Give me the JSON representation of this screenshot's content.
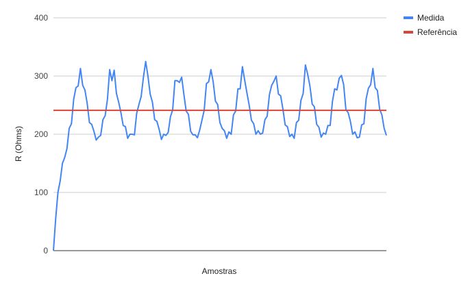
{
  "chart_data": {
    "type": "line",
    "xlabel": "Amostras",
    "ylabel": "R (Ohms)",
    "ylim": [
      0,
      400
    ],
    "yticks": [
      0,
      100,
      200,
      300,
      400
    ],
    "grid": true,
    "legend_position": "top-right",
    "series": [
      {
        "name": "Medida",
        "color": "#4285f4",
        "values": [
          0,
          55,
          100,
          120,
          150,
          160,
          175,
          210,
          218,
          260,
          280,
          283,
          313,
          284,
          276,
          253,
          220,
          217,
          205,
          190,
          195,
          198,
          225,
          232,
          260,
          311,
          292,
          310,
          270,
          255,
          237,
          215,
          213,
          193,
          200,
          200,
          199,
          236,
          251,
          265,
          298,
          325,
          300,
          269,
          255,
          225,
          222,
          208,
          191,
          200,
          198,
          203,
          230,
          242,
          292,
          292,
          289,
          298,
          268,
          240,
          234,
          205,
          199,
          199,
          194,
          207,
          224,
          241,
          287,
          290,
          311,
          290,
          257,
          251,
          220,
          210,
          206,
          193,
          204,
          200,
          233,
          240,
          278,
          278,
          316,
          293,
          271,
          250,
          224,
          218,
          200,
          206,
          200,
          202,
          225,
          231,
          268,
          284,
          291,
          300,
          269,
          266,
          243,
          216,
          213,
          196,
          200,
          193,
          220,
          224,
          258,
          270,
          319,
          303,
          283,
          252,
          247,
          217,
          212,
          195,
          202,
          200,
          215,
          215,
          256,
          278,
          276,
          296,
          301,
          285,
          242,
          237,
          222,
          200,
          204,
          194,
          195,
          216,
          218,
          261,
          279,
          285,
          313,
          280,
          275,
          243,
          233,
          210,
          198
        ]
      },
      {
        "name": "Referência",
        "color": "#db4437",
        "constant": 241
      }
    ]
  }
}
